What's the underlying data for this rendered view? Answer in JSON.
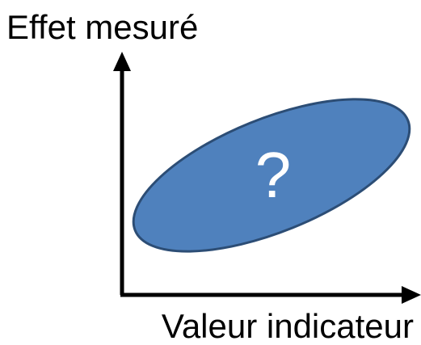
{
  "diagram": {
    "y_axis_label": "Effet mesuré",
    "x_axis_label": "Valeur indicateur",
    "region_symbol": "?",
    "colors": {
      "region_fill": "#4f81bd",
      "region_stroke": "#2c4d75",
      "axis": "#000000",
      "symbol": "#ffffff"
    }
  }
}
